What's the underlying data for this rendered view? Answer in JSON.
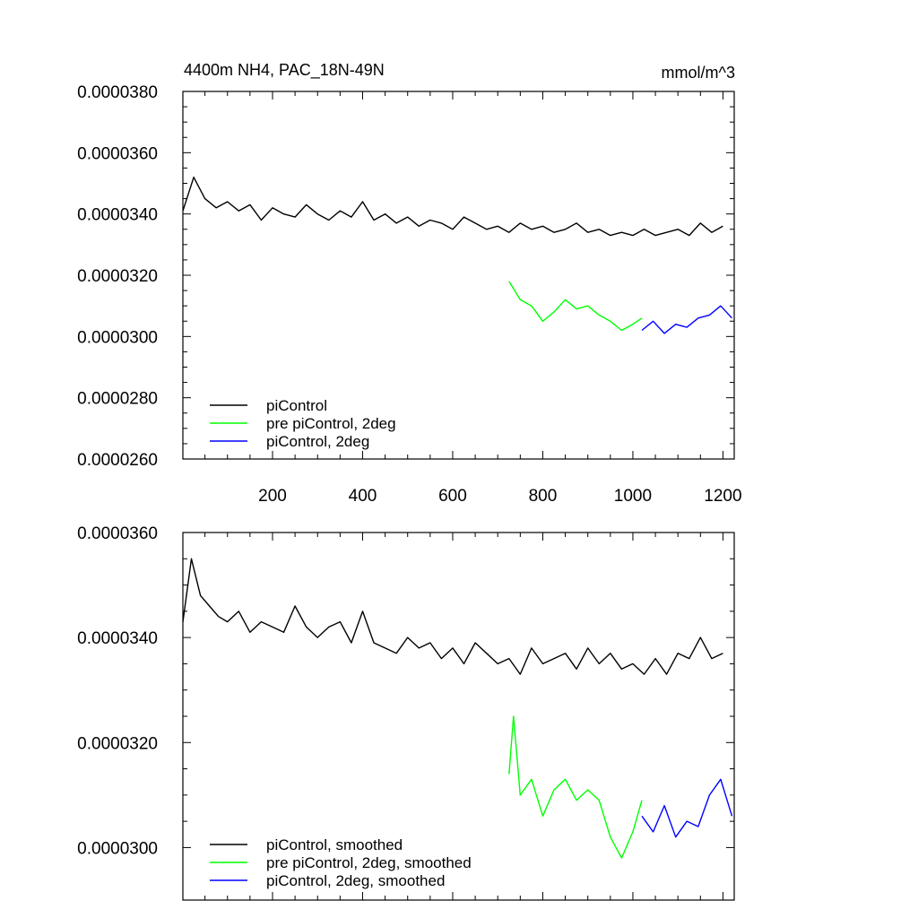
{
  "chart_data": [
    {
      "type": "line",
      "title": "4400m NH4, PAC_18N-49N",
      "units": "mmol/m^3",
      "xlim": [
        1,
        1225
      ],
      "ylim": [
        2.6e-05,
        3.8e-05
      ],
      "y_ticks": [
        "0.0000260",
        "0.0000280",
        "0.0000300",
        "0.0000320",
        "0.0000340",
        "0.0000360",
        "0.0000380"
      ],
      "y_tick_values": [
        2.6e-05,
        2.8e-05,
        3e-05,
        3.2e-05,
        3.4e-05,
        3.6e-05,
        3.8e-05
      ],
      "x_ticks": [
        "200",
        "400",
        "600",
        "800",
        "1000",
        "1200"
      ],
      "x_tick_values": [
        200,
        400,
        600,
        800,
        1000,
        1200
      ],
      "legend_position": "bottom-left",
      "grid": false,
      "series": [
        {
          "name": "piControl",
          "color": "#000000",
          "x": [
            1,
            25,
            50,
            75,
            100,
            125,
            150,
            175,
            200,
            225,
            250,
            275,
            300,
            325,
            350,
            375,
            400,
            425,
            450,
            475,
            500,
            525,
            550,
            575,
            600,
            625,
            650,
            675,
            700,
            725,
            750,
            775,
            800,
            825,
            850,
            875,
            900,
            925,
            950,
            975,
            1000,
            1025,
            1050,
            1075,
            1100,
            1125,
            1150,
            1175,
            1200
          ],
          "y": [
            3.41e-05,
            3.52e-05,
            3.45e-05,
            3.42e-05,
            3.44e-05,
            3.41e-05,
            3.43e-05,
            3.38e-05,
            3.42e-05,
            3.4e-05,
            3.39e-05,
            3.43e-05,
            3.4e-05,
            3.38e-05,
            3.41e-05,
            3.39e-05,
            3.44e-05,
            3.38e-05,
            3.4e-05,
            3.37e-05,
            3.39e-05,
            3.36e-05,
            3.38e-05,
            3.37e-05,
            3.35e-05,
            3.39e-05,
            3.37e-05,
            3.35e-05,
            3.36e-05,
            3.34e-05,
            3.37e-05,
            3.35e-05,
            3.36e-05,
            3.34e-05,
            3.35e-05,
            3.37e-05,
            3.34e-05,
            3.35e-05,
            3.33e-05,
            3.34e-05,
            3.33e-05,
            3.35e-05,
            3.33e-05,
            3.34e-05,
            3.35e-05,
            3.33e-05,
            3.37e-05,
            3.34e-05,
            3.36e-05
          ]
        },
        {
          "name": "pre piControl, 2deg",
          "color": "#00ff00",
          "x": [
            725,
            750,
            775,
            800,
            825,
            850,
            875,
            900,
            925,
            950,
            975,
            1000,
            1020
          ],
          "y": [
            3.18e-05,
            3.12e-05,
            3.1e-05,
            3.05e-05,
            3.08e-05,
            3.12e-05,
            3.09e-05,
            3.1e-05,
            3.07e-05,
            3.05e-05,
            3.02e-05,
            3.04e-05,
            3.06e-05
          ]
        },
        {
          "name": "piControl, 2deg",
          "color": "#0000ff",
          "x": [
            1020,
            1045,
            1070,
            1095,
            1120,
            1145,
            1170,
            1195,
            1220
          ],
          "y": [
            3.02e-05,
            3.05e-05,
            3.01e-05,
            3.04e-05,
            3.03e-05,
            3.06e-05,
            3.07e-05,
            3.1e-05,
            3.06e-05
          ]
        }
      ]
    },
    {
      "type": "line",
      "xlim": [
        1,
        1225
      ],
      "ylim": [
        2.9e-05,
        3.6e-05
      ],
      "y_ticks": [
        "0.0000300",
        "0.0000320",
        "0.0000340",
        "0.0000360"
      ],
      "y_tick_values": [
        3e-05,
        3.2e-05,
        3.4e-05,
        3.6e-05
      ],
      "x_tick_values": [
        200,
        400,
        600,
        800,
        1000,
        1200
      ],
      "legend_position": "bottom-left",
      "grid": false,
      "series": [
        {
          "name": "piControl, smoothed",
          "color": "#000000",
          "x": [
            1,
            20,
            40,
            60,
            80,
            100,
            125,
            150,
            175,
            200,
            225,
            250,
            275,
            300,
            325,
            350,
            375,
            400,
            425,
            450,
            475,
            500,
            525,
            550,
            575,
            600,
            625,
            650,
            675,
            700,
            725,
            750,
            775,
            800,
            825,
            850,
            875,
            900,
            925,
            950,
            975,
            1000,
            1025,
            1050,
            1075,
            1100,
            1125,
            1150,
            1175,
            1200
          ],
          "y": [
            3.43e-05,
            3.55e-05,
            3.48e-05,
            3.46e-05,
            3.44e-05,
            3.43e-05,
            3.45e-05,
            3.41e-05,
            3.43e-05,
            3.42e-05,
            3.41e-05,
            3.46e-05,
            3.42e-05,
            3.4e-05,
            3.42e-05,
            3.43e-05,
            3.39e-05,
            3.45e-05,
            3.39e-05,
            3.38e-05,
            3.37e-05,
            3.4e-05,
            3.38e-05,
            3.39e-05,
            3.36e-05,
            3.38e-05,
            3.35e-05,
            3.39e-05,
            3.37e-05,
            3.35e-05,
            3.36e-05,
            3.33e-05,
            3.38e-05,
            3.35e-05,
            3.36e-05,
            3.37e-05,
            3.34e-05,
            3.38e-05,
            3.35e-05,
            3.37e-05,
            3.34e-05,
            3.35e-05,
            3.33e-05,
            3.36e-05,
            3.33e-05,
            3.37e-05,
            3.36e-05,
            3.4e-05,
            3.36e-05,
            3.37e-05
          ]
        },
        {
          "name": "pre piControl, 2deg, smoothed",
          "color": "#00ff00",
          "x": [
            725,
            735,
            750,
            775,
            800,
            825,
            850,
            875,
            900,
            925,
            950,
            975,
            1000,
            1020
          ],
          "y": [
            3.14e-05,
            3.25e-05,
            3.1e-05,
            3.13e-05,
            3.06e-05,
            3.11e-05,
            3.13e-05,
            3.09e-05,
            3.11e-05,
            3.09e-05,
            3.02e-05,
            2.98e-05,
            3.03e-05,
            3.09e-05
          ]
        },
        {
          "name": "piControl, 2deg, smoothed",
          "color": "#0000ff",
          "x": [
            1020,
            1045,
            1070,
            1095,
            1120,
            1145,
            1170,
            1195,
            1220
          ],
          "y": [
            3.06e-05,
            3.03e-05,
            3.08e-05,
            3.02e-05,
            3.05e-05,
            3.04e-05,
            3.1e-05,
            3.13e-05,
            3.06e-05
          ]
        }
      ]
    }
  ]
}
